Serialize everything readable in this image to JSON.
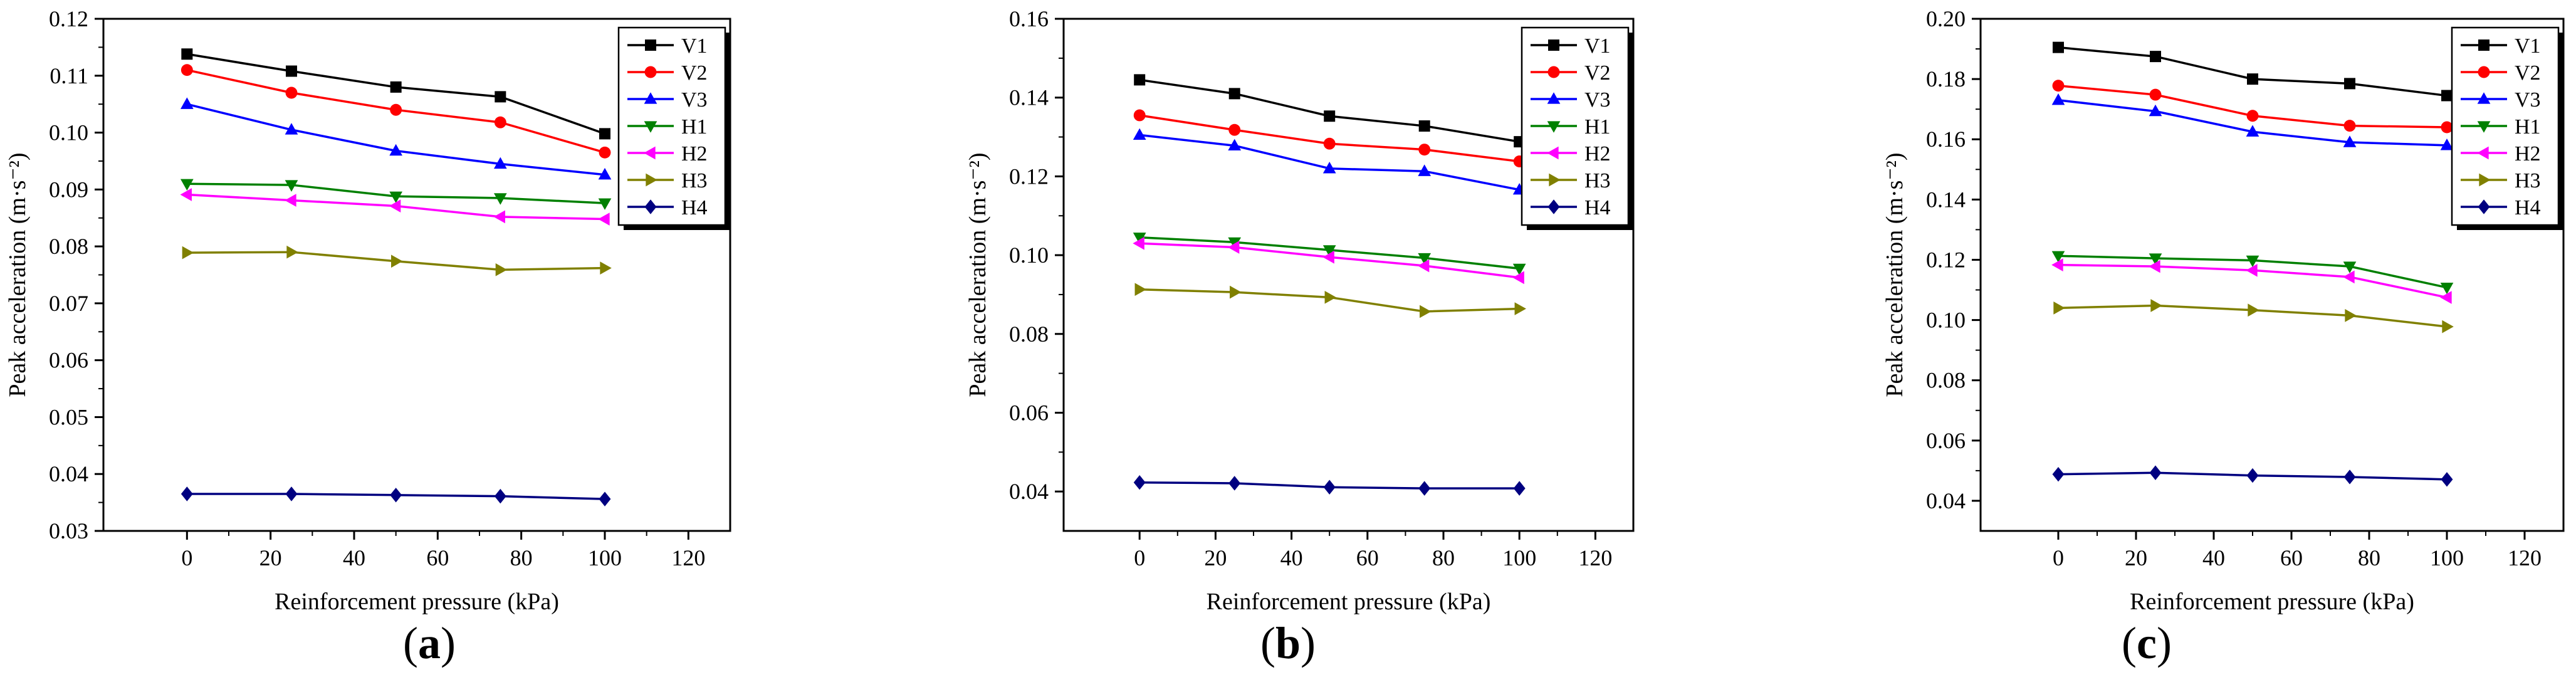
{
  "chart_data": [
    {
      "type": "line",
      "panel_label": "a",
      "xlabel": "Reinforcement pressure (kPa)",
      "ylabel": "Peak acceleration (m·s⁻²)",
      "x": [
        0,
        25,
        50,
        75,
        100
      ],
      "xlim": [
        -20,
        130
      ],
      "xticks": [
        0,
        20,
        40,
        60,
        80,
        100,
        120
      ],
      "ylim": [
        0.03,
        0.12
      ],
      "yticks": [
        0.03,
        0.04,
        0.05,
        0.06,
        0.07,
        0.08,
        0.09,
        0.1,
        0.11,
        0.12
      ],
      "ytick_decimals": 2,
      "legend_position": "top-right",
      "series": [
        {
          "name": "V1",
          "color": "#000000",
          "marker": "square",
          "values": [
            0.1138,
            0.1108,
            0.108,
            0.1063,
            0.0998
          ]
        },
        {
          "name": "V2",
          "color": "#ff0000",
          "marker": "circle",
          "values": [
            0.111,
            0.107,
            0.104,
            0.1018,
            0.0965
          ]
        },
        {
          "name": "V3",
          "color": "#0000ff",
          "marker": "triangle-up",
          "values": [
            0.105,
            0.1005,
            0.0968,
            0.0945,
            0.0926
          ]
        },
        {
          "name": "H1",
          "color": "#008000",
          "marker": "triangle-down",
          "values": [
            0.091,
            0.0908,
            0.0888,
            0.0885,
            0.0876
          ]
        },
        {
          "name": "H2",
          "color": "#ff00ff",
          "marker": "triangle-left",
          "values": [
            0.0891,
            0.0881,
            0.0871,
            0.0852,
            0.0848
          ]
        },
        {
          "name": "H3",
          "color": "#808000",
          "marker": "triangle-right",
          "values": [
            0.0789,
            0.079,
            0.0774,
            0.0759,
            0.0762
          ]
        },
        {
          "name": "H4",
          "color": "#000080",
          "marker": "diamond",
          "values": [
            0.0365,
            0.0365,
            0.0363,
            0.0361,
            0.0356
          ]
        }
      ]
    },
    {
      "type": "line",
      "panel_label": "b",
      "xlabel": "Reinforcement pressure (kPa)",
      "ylabel": "Peak acceleration (m·s⁻²)",
      "x": [
        0,
        25,
        50,
        75,
        100
      ],
      "xlim": [
        -20,
        130
      ],
      "xticks": [
        0,
        20,
        40,
        60,
        80,
        100,
        120
      ],
      "ylim": [
        0.03,
        0.16
      ],
      "yticks": [
        0.04,
        0.06,
        0.08,
        0.1,
        0.12,
        0.14,
        0.16
      ],
      "ytick_decimals": 2,
      "legend_position": "top-right",
      "series": [
        {
          "name": "V1",
          "color": "#000000",
          "marker": "square",
          "values": [
            0.1445,
            0.141,
            0.1353,
            0.1328,
            0.1288
          ]
        },
        {
          "name": "V2",
          "color": "#ff0000",
          "marker": "circle",
          "values": [
            0.1355,
            0.1318,
            0.1283,
            0.1268,
            0.1238
          ]
        },
        {
          "name": "V3",
          "color": "#0000ff",
          "marker": "triangle-up",
          "values": [
            0.1305,
            0.1278,
            0.122,
            0.1213,
            0.1166
          ]
        },
        {
          "name": "H1",
          "color": "#008000",
          "marker": "triangle-down",
          "values": [
            0.1045,
            0.1033,
            0.1013,
            0.0993,
            0.0966
          ]
        },
        {
          "name": "H2",
          "color": "#ff00ff",
          "marker": "triangle-left",
          "values": [
            0.103,
            0.102,
            0.0995,
            0.0973,
            0.0943
          ]
        },
        {
          "name": "H3",
          "color": "#808000",
          "marker": "triangle-right",
          "values": [
            0.0913,
            0.0906,
            0.0893,
            0.0857,
            0.0864
          ]
        },
        {
          "name": "H4",
          "color": "#000080",
          "marker": "diamond",
          "values": [
            0.0423,
            0.0421,
            0.0411,
            0.0408,
            0.0408
          ]
        }
      ]
    },
    {
      "type": "line",
      "panel_label": "c",
      "xlabel": "Reinforcement pressure (kPa)",
      "ylabel": "Peak acceleration (m·s⁻²)",
      "x": [
        0,
        25,
        50,
        75,
        100
      ],
      "xlim": [
        -20,
        130
      ],
      "xticks": [
        0,
        20,
        40,
        60,
        80,
        100,
        120
      ],
      "ylim": [
        0.03,
        0.2
      ],
      "yticks": [
        0.04,
        0.06,
        0.08,
        0.1,
        0.12,
        0.14,
        0.16,
        0.18,
        0.2
      ],
      "ytick_decimals": 2,
      "legend_position": "top-right",
      "series": [
        {
          "name": "V1",
          "color": "#000000",
          "marker": "square",
          "values": [
            0.1905,
            0.1875,
            0.18,
            0.1785,
            0.1745
          ]
        },
        {
          "name": "V2",
          "color": "#ff0000",
          "marker": "circle",
          "values": [
            0.1778,
            0.1748,
            0.1678,
            0.1645,
            0.164
          ]
        },
        {
          "name": "V3",
          "color": "#0000ff",
          "marker": "triangle-up",
          "values": [
            0.173,
            0.1693,
            0.1625,
            0.159,
            0.158
          ]
        },
        {
          "name": "H1",
          "color": "#008000",
          "marker": "triangle-down",
          "values": [
            0.1213,
            0.1205,
            0.1198,
            0.1178,
            0.1108
          ]
        },
        {
          "name": "H2",
          "color": "#ff00ff",
          "marker": "triangle-left",
          "values": [
            0.1183,
            0.1178,
            0.1165,
            0.1143,
            0.1075
          ]
        },
        {
          "name": "H3",
          "color": "#808000",
          "marker": "triangle-right",
          "values": [
            0.104,
            0.1048,
            0.1033,
            0.1015,
            0.0978
          ]
        },
        {
          "name": "H4",
          "color": "#000080",
          "marker": "diamond",
          "values": [
            0.0488,
            0.0493,
            0.0484,
            0.0479,
            0.0471
          ]
        }
      ]
    }
  ]
}
